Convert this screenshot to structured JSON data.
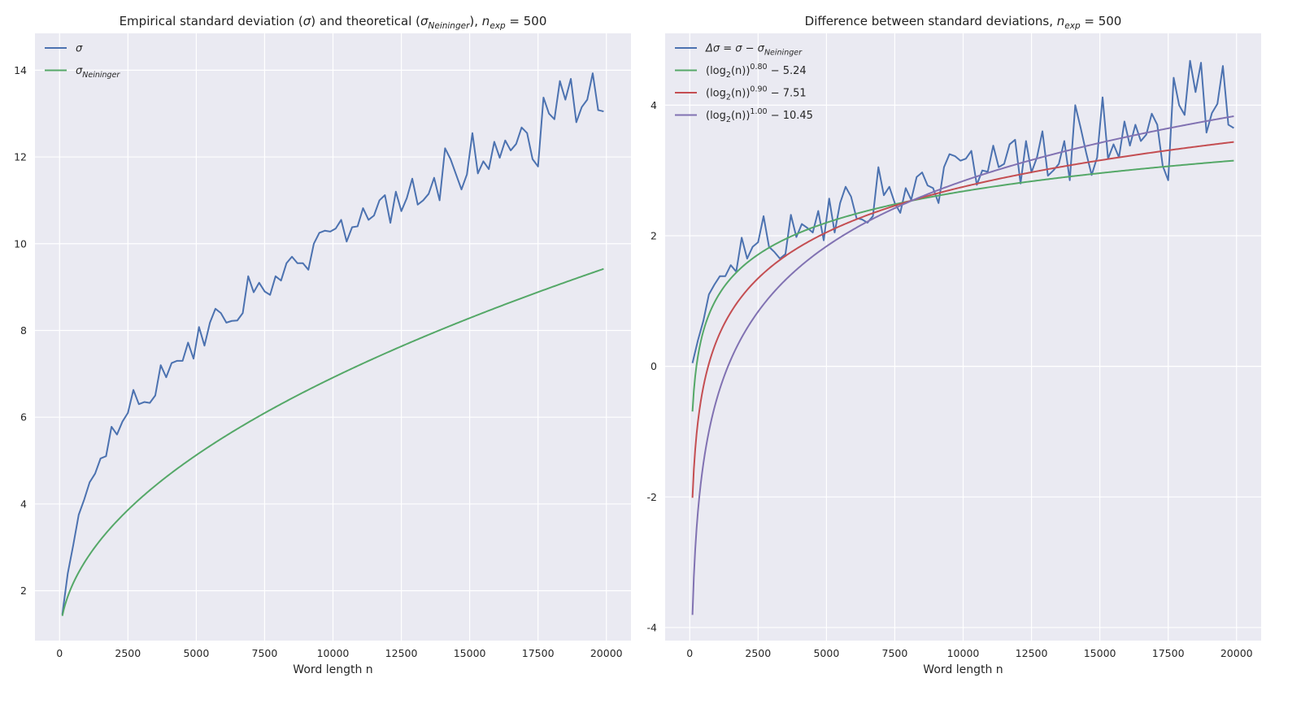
{
  "chart_data": [
    {
      "type": "line",
      "title": "Empirical standard deviation (σ) and theoretical (σNeininger), nexp = 500",
      "title_parts": {
        "pre": "Empirical standard deviation (",
        "sigma": "σ",
        "mid": ") and theoretical (",
        "sigma_sub": "Neininger",
        "post": "), ",
        "n": "n",
        "n_sub": "exp",
        "eq": " = 500"
      },
      "xlabel": "Word length n",
      "ylabel": "",
      "xlim": [
        -900,
        20900
      ],
      "ylim": [
        0.85,
        14.85
      ],
      "xticks": [
        0,
        2500,
        5000,
        7500,
        10000,
        12500,
        15000,
        17500,
        20000
      ],
      "yticks": [
        2,
        4,
        6,
        8,
        10,
        12,
        14
      ],
      "grid": true,
      "legend_position": "top-left",
      "series": [
        {
          "name": "σ",
          "legend": {
            "main": "σ",
            "sub": ""
          },
          "color": "#4c72b0",
          "x": [
            100,
            300,
            500,
            700,
            900,
            1100,
            1300,
            1500,
            1700,
            1900,
            2100,
            2300,
            2500,
            2700,
            2900,
            3100,
            3300,
            3500,
            3700,
            3900,
            4100,
            4300,
            4500,
            4700,
            4900,
            5100,
            5300,
            5500,
            5700,
            5900,
            6100,
            6300,
            6500,
            6700,
            6900,
            7100,
            7300,
            7500,
            7700,
            7900,
            8100,
            8300,
            8500,
            8700,
            8900,
            9100,
            9300,
            9500,
            9700,
            9900,
            10100,
            10300,
            10500,
            10700,
            10900,
            11100,
            11300,
            11500,
            11700,
            11900,
            12100,
            12300,
            12500,
            12700,
            12900,
            13100,
            13300,
            13500,
            13700,
            13900,
            14100,
            14300,
            14500,
            14700,
            14900,
            15100,
            15300,
            15500,
            15700,
            15900,
            16100,
            16300,
            16500,
            16700,
            16900,
            17100,
            17300,
            17500,
            17700,
            17900,
            18100,
            18300,
            18500,
            18700,
            18900,
            19100,
            19300,
            19500,
            19700,
            19900
          ],
          "y": [
            1.45,
            2.4,
            3.05,
            3.75,
            4.1,
            4.5,
            4.7,
            5.05,
            5.1,
            5.78,
            5.6,
            5.9,
            6.1,
            6.63,
            6.3,
            6.35,
            6.33,
            6.5,
            7.2,
            6.92,
            7.25,
            7.3,
            7.3,
            7.72,
            7.35,
            8.08,
            7.65,
            8.18,
            8.5,
            8.4,
            8.18,
            8.22,
            8.23,
            8.4,
            9.25,
            8.88,
            9.1,
            8.9,
            8.82,
            9.25,
            9.15,
            9.55,
            9.7,
            9.55,
            9.55,
            9.4,
            10.0,
            10.25,
            10.3,
            10.28,
            10.35,
            10.55,
            10.05,
            10.38,
            10.4,
            10.82,
            10.55,
            10.65,
            11.0,
            11.12,
            10.48,
            11.2,
            10.75,
            11.05,
            11.5,
            10.9,
            11.0,
            11.15,
            11.52,
            11.0,
            12.2,
            11.95,
            11.6,
            11.25,
            11.6,
            12.55,
            11.62,
            11.9,
            11.72,
            12.35,
            11.98,
            12.38,
            12.15,
            12.3,
            12.68,
            12.55,
            11.95,
            11.78,
            13.37,
            13.0,
            12.87,
            13.75,
            13.32,
            13.8,
            12.8,
            13.15,
            13.32,
            13.93,
            13.08,
            13.05
          ]
        },
        {
          "name": "σNeininger",
          "legend": {
            "main": "σ",
            "sub": "Neininger"
          },
          "color": "#55a868",
          "curve": "sqrt",
          "x_range": [
            100,
            19900
          ],
          "y_at_start": 1.42,
          "y_at_end": 9.42
        }
      ]
    },
    {
      "type": "line",
      "title": "Difference between standard deviations, nexp = 500",
      "title_parts": {
        "pre": "Difference between standard deviations, ",
        "n": "n",
        "n_sub": "exp",
        "eq": " = 500"
      },
      "xlabel": "Word length n",
      "ylabel": "",
      "xlim": [
        -900,
        20900
      ],
      "ylim": [
        -4.2,
        5.1
      ],
      "xticks": [
        0,
        2500,
        5000,
        7500,
        10000,
        12500,
        15000,
        17500,
        20000
      ],
      "yticks": [
        -4,
        -2,
        0,
        2,
        4
      ],
      "grid": true,
      "legend_position": "top-left",
      "series": [
        {
          "name": "Δσ = σ − σNeininger",
          "legend": {
            "main": "Δσ = σ − σ",
            "sub": "Neininger",
            "sup": ""
          },
          "color": "#4c72b0",
          "x": [
            100,
            300,
            500,
            700,
            900,
            1100,
            1300,
            1500,
            1700,
            1900,
            2100,
            2300,
            2500,
            2700,
            2900,
            3100,
            3300,
            3500,
            3700,
            3900,
            4100,
            4300,
            4500,
            4700,
            4900,
            5100,
            5300,
            5500,
            5700,
            5900,
            6100,
            6300,
            6500,
            6700,
            6900,
            7100,
            7300,
            7500,
            7700,
            7900,
            8100,
            8300,
            8500,
            8700,
            8900,
            9100,
            9300,
            9500,
            9700,
            9900,
            10100,
            10300,
            10500,
            10700,
            10900,
            11100,
            11300,
            11500,
            11700,
            11900,
            12100,
            12300,
            12500,
            12700,
            12900,
            13100,
            13300,
            13500,
            13700,
            13900,
            14100,
            14300,
            14500,
            14700,
            14900,
            15100,
            15300,
            15500,
            15700,
            15900,
            16100,
            16300,
            16500,
            16700,
            16900,
            17100,
            17300,
            17500,
            17700,
            17900,
            18100,
            18300,
            18500,
            18700,
            18900,
            19100,
            19300,
            19500,
            19700,
            19900
          ],
          "y": [
            0.05,
            0.4,
            0.7,
            1.1,
            1.25,
            1.38,
            1.38,
            1.55,
            1.45,
            1.97,
            1.65,
            1.83,
            1.9,
            2.3,
            1.83,
            1.75,
            1.65,
            1.72,
            2.32,
            1.98,
            2.18,
            2.12,
            2.05,
            2.38,
            1.93,
            2.57,
            2.05,
            2.5,
            2.75,
            2.6,
            2.27,
            2.25,
            2.2,
            2.3,
            3.05,
            2.62,
            2.75,
            2.5,
            2.35,
            2.73,
            2.55,
            2.9,
            2.97,
            2.77,
            2.73,
            2.5,
            3.05,
            3.25,
            3.22,
            3.15,
            3.18,
            3.3,
            2.78,
            3.0,
            2.98,
            3.38,
            3.05,
            3.1,
            3.4,
            3.47,
            2.8,
            3.45,
            2.97,
            3.2,
            3.6,
            2.92,
            3.0,
            3.1,
            3.45,
            2.85,
            4.0,
            3.65,
            3.27,
            2.93,
            3.2,
            4.12,
            3.18,
            3.4,
            3.2,
            3.75,
            3.38,
            3.7,
            3.45,
            3.55,
            3.87,
            3.7,
            3.07,
            2.85,
            4.42,
            4.0,
            3.85,
            4.68,
            4.2,
            4.65,
            3.58,
            3.88,
            4.02,
            4.6,
            3.7,
            3.65
          ]
        },
        {
          "name": "(log2(n))^0.80 − 5.24",
          "legend": {
            "main": "(log",
            "sub": "2",
            "mid": "(n))",
            "sup": "0.80",
            "tail": " − 5.24"
          },
          "color": "#55a868",
          "curve": "logpow",
          "exponent": 0.8,
          "offset": -5.24,
          "x_range": [
            100,
            19900
          ]
        },
        {
          "name": "(log2(n))^0.90 − 7.51",
          "legend": {
            "main": "(log",
            "sub": "2",
            "mid": "(n))",
            "sup": "0.90",
            "tail": " − 7.51"
          },
          "color": "#c44e52",
          "curve": "logpow",
          "exponent": 0.9,
          "offset": -7.51,
          "x_range": [
            100,
            19900
          ]
        },
        {
          "name": "(log2(n))^1.00 − 10.45",
          "legend": {
            "main": "(log",
            "sub": "2",
            "mid": "(n))",
            "sup": "1.00",
            "tail": " − 10.45"
          },
          "color": "#8172b2",
          "curve": "logpow",
          "exponent": 1.0,
          "offset": -10.45,
          "x_range": [
            100,
            19900
          ]
        }
      ]
    }
  ]
}
